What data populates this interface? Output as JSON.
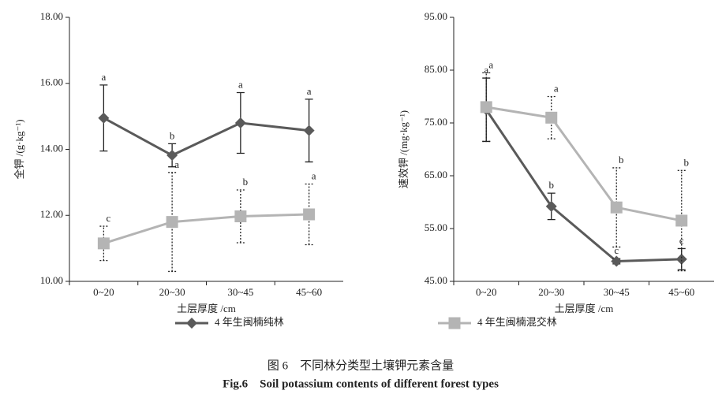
{
  "chart_data": [
    {
      "type": "line",
      "x_label": "土层厚度 /cm",
      "y_label": "全钾 /(g·kg⁻¹)",
      "categories": [
        "0~20",
        "20~30",
        "30~45",
        "45~60"
      ],
      "ylim": [
        10,
        18
      ],
      "yticks": [
        {
          "value": 10,
          "label": "10.00"
        },
        {
          "value": 12,
          "label": "12.00"
        },
        {
          "value": 14,
          "label": "14.00"
        },
        {
          "value": 16,
          "label": "16.00"
        },
        {
          "value": 18,
          "label": "18.00"
        }
      ],
      "series": [
        {
          "color": "#5a5a5a",
          "marker": "diamond",
          "values": [
            14.95,
            13.82,
            14.8,
            14.57
          ],
          "errors": [
            1.0,
            0.35,
            0.92,
            0.95
          ],
          "letters": [
            "a",
            "b",
            "a",
            "a"
          ]
        },
        {
          "color": "#b4b4b4",
          "marker": "square",
          "values": [
            11.15,
            11.8,
            11.97,
            12.03
          ],
          "errors": [
            0.52,
            1.5,
            0.8,
            0.92
          ],
          "letters": [
            "c",
            "a",
            "b",
            "a"
          ]
        }
      ]
    },
    {
      "type": "line",
      "x_label": "土层厚度 /cm",
      "y_label": "速效钾 /(mg·kg⁻¹)",
      "categories": [
        "0~20",
        "20~30",
        "30~45",
        "45~60"
      ],
      "ylim": [
        45,
        95
      ],
      "yticks": [
        {
          "value": 45,
          "label": "45.00"
        },
        {
          "value": 55,
          "label": "55.00"
        },
        {
          "value": 65,
          "label": "65.00"
        },
        {
          "value": 75,
          "label": "75.00"
        },
        {
          "value": 85,
          "label": "85.00"
        },
        {
          "value": 95,
          "label": "95.00"
        }
      ],
      "series": [
        {
          "color": "#5a5a5a",
          "marker": "diamond",
          "values": [
            77.5,
            59.2,
            48.8,
            49.2
          ],
          "errors": [
            6.0,
            2.5,
            0.5,
            2.0
          ],
          "letters": [
            "a",
            "b",
            "c",
            "c"
          ]
        },
        {
          "color": "#b4b4b4",
          "marker": "square",
          "values": [
            78,
            76,
            59,
            56.5
          ],
          "errors": [
            6.5,
            4.0,
            7.5,
            9.5
          ],
          "letters": [
            "a",
            "a",
            "b",
            "b"
          ]
        }
      ]
    }
  ],
  "legend": [
    {
      "name": "4 年生闽楠纯林",
      "color": "#5a5a5a",
      "marker": "diamond"
    },
    {
      "name": "4 年生闽楠混交林",
      "color": "#b4b4b4",
      "marker": "square"
    }
  ],
  "caption": {
    "zh": "图 6　不同林分类型土壤钾元素含量",
    "en": "Fig.6　Soil potassium contents of different forest types"
  }
}
